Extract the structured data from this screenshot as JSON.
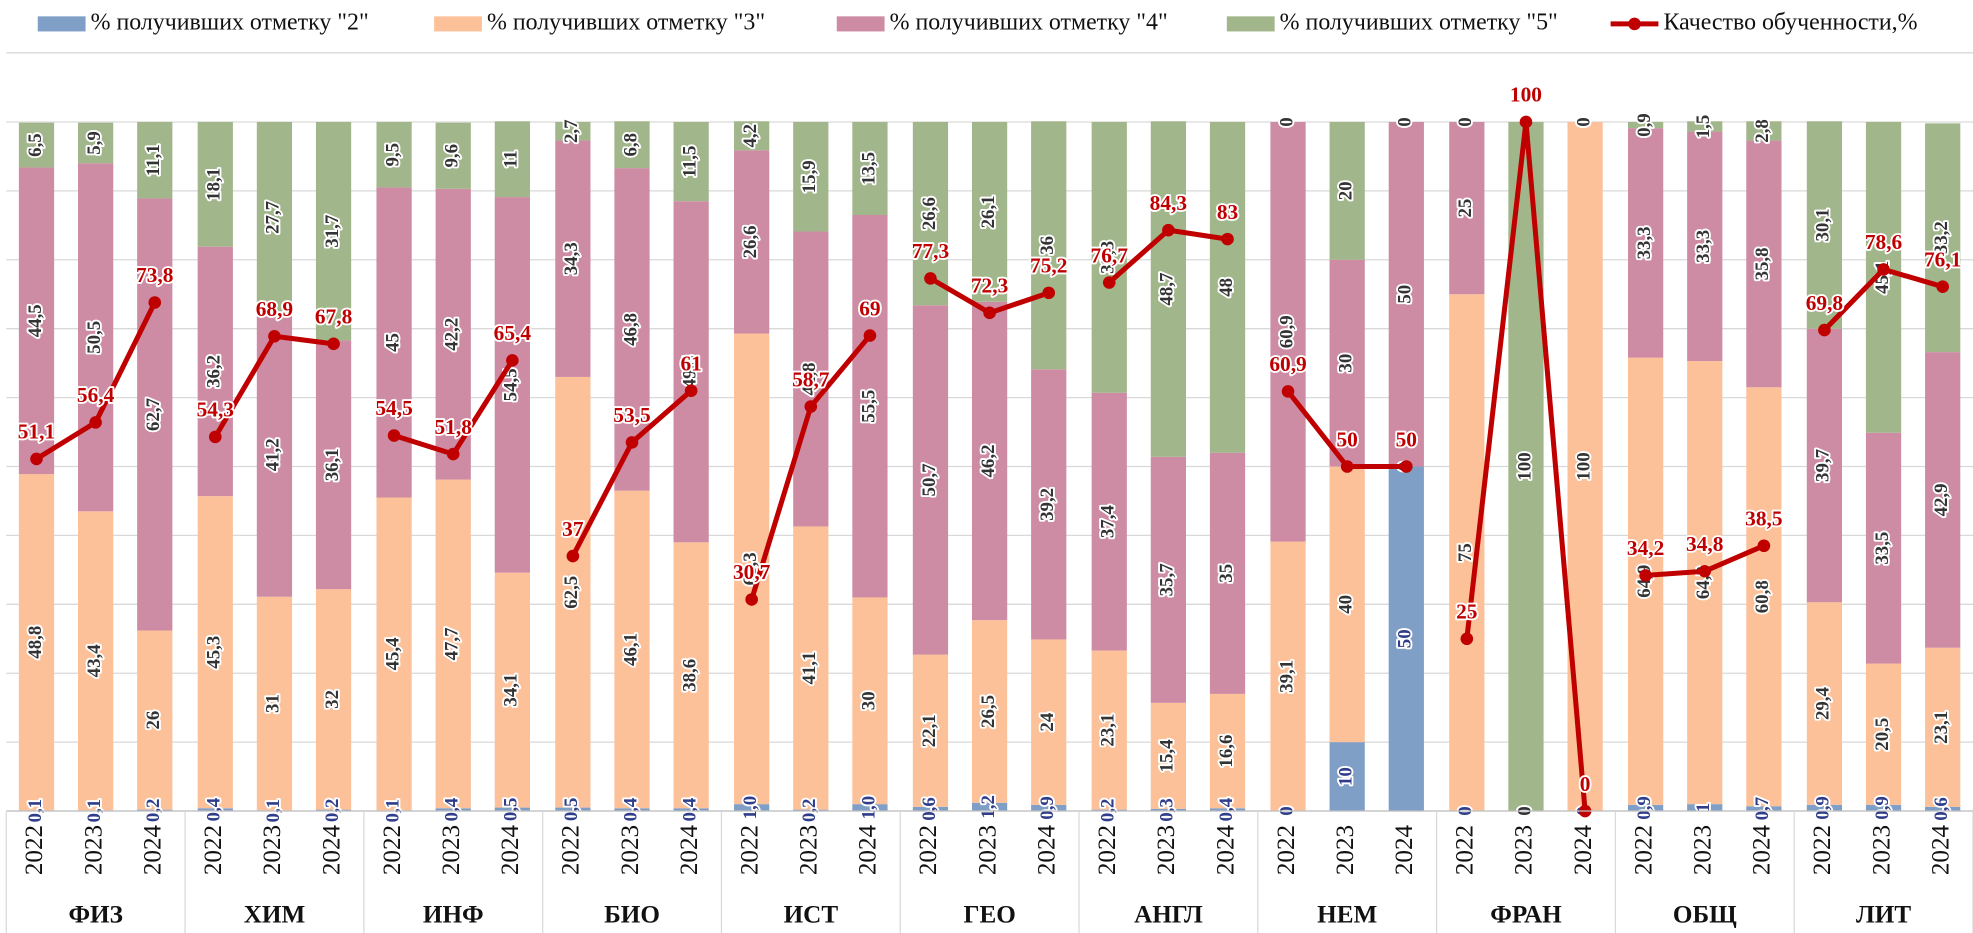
{
  "chart_data": {
    "type": "stacked_bar_line",
    "groups": [
      "ФИЗ",
      "ХИМ",
      "ИНФ",
      "БИО",
      "ИСТ",
      "ГЕО",
      "АНГЛ",
      "НЕМ",
      "ФРАН",
      "ОБЩ",
      "ЛИТ"
    ],
    "categories": [
      "2022",
      "2023",
      "2024",
      "2022",
      "2023",
      "2024",
      "2022",
      "2023",
      "2024",
      "2022",
      "2023",
      "2024",
      "2022",
      "2023",
      "2024",
      "2022",
      "2023",
      "2024",
      "2022",
      "2023",
      "2024",
      "2022",
      "2023",
      "2024",
      "2022",
      "2023",
      "2024",
      "2022",
      "2023",
      "2024",
      "2022",
      "2023",
      "2024"
    ],
    "ylim": [
      0,
      100
    ],
    "gridlines": [
      0,
      10,
      20,
      30,
      40,
      50,
      60,
      70,
      80,
      90,
      100
    ],
    "series": [
      {
        "name": "%  получивших отметку \"2\"",
        "color": "#7f9fc6",
        "label_color": "#2f3d8a",
        "values": [
          0.1,
          0.1,
          0.2,
          0.4,
          0.1,
          0.2,
          0.1,
          0.4,
          0.5,
          0.5,
          0.4,
          0.4,
          1.0,
          0.2,
          1.0,
          0.6,
          1.2,
          0.9,
          0.2,
          0.3,
          0.4,
          0,
          10,
          50,
          0,
          0,
          0,
          0.9,
          1,
          0.7,
          0.9,
          0.9,
          0.6
        ],
        "value_labels": [
          "0,1",
          "0,1",
          "0,2",
          "0,4",
          "0,1",
          "0,2",
          "0,1",
          "0,4",
          "0,5",
          "0,5",
          "0,4",
          "0,4",
          "1,0",
          "0,2",
          "1,0",
          "0,6",
          "1,2",
          "0,9",
          "0,2",
          "0,3",
          "0,4",
          "0",
          "10",
          "50",
          "0",
          "0",
          "0",
          "0,9",
          "1",
          "0,7",
          "0,9",
          "0,9",
          "0,6"
        ]
      },
      {
        "name": "%  получивших отметку \"3\"",
        "color": "#fcc199",
        "label_color": "#333333",
        "values": [
          48.8,
          43.4,
          26,
          45.3,
          31,
          32,
          45.4,
          47.7,
          34.1,
          62.5,
          46.1,
          38.6,
          68.3,
          41.1,
          30,
          22.1,
          26.5,
          24,
          23.1,
          15.4,
          16.6,
          39.1,
          40,
          0,
          75,
          0,
          100,
          64.9,
          64.3,
          60.8,
          29.4,
          20.5,
          23.1
        ],
        "value_labels": [
          "48,8",
          "43,4",
          "26",
          "45,3",
          "31",
          "32",
          "45,4",
          "47,7",
          "34,1",
          "62,5",
          "46,1",
          "38,6",
          "68,3",
          "41,1",
          "30",
          "22,1",
          "26,5",
          "24",
          "23,1",
          "15,4",
          "16,6",
          "39,1",
          "40",
          "0",
          "75",
          "0",
          "100",
          "64,9",
          "64,3",
          "60,8",
          "29,4",
          "20,5",
          "23,1"
        ]
      },
      {
        "name": "% получивших отметку \"4\"",
        "color": "#cd8ba4",
        "label_color": "#333333",
        "values": [
          44.5,
          50.5,
          62.7,
          36.2,
          41.2,
          36.1,
          45,
          42.2,
          54.5,
          34.3,
          46.8,
          49.5,
          26.6,
          42.8,
          55.5,
          50.7,
          46.2,
          39.2,
          37.4,
          35.7,
          35,
          60.9,
          30,
          50,
          25,
          0,
          0,
          33.3,
          33.3,
          35.8,
          39.7,
          33.5,
          42.9
        ],
        "value_labels": [
          "44,5",
          "50,5",
          "62,7",
          "36,2",
          "41,2",
          "36,1",
          "45",
          "42,2",
          "54,5",
          "34,3",
          "46,8",
          "49,5",
          "26,6",
          "42,8",
          "55,5",
          "50,7",
          "46,2",
          "39,2",
          "37,4",
          "35,7",
          "35",
          "60,9",
          "30",
          "50",
          "25",
          "0",
          "0",
          "33,3",
          "33,3",
          "35,8",
          "39,7",
          "33,5",
          "42,9"
        ]
      },
      {
        "name": "% получивших отметку \"5\"",
        "color": "#a2b68b",
        "label_color": "#333333",
        "values": [
          6.5,
          5.9,
          11.1,
          18.1,
          27.7,
          31.7,
          9.5,
          9.6,
          11,
          2.7,
          6.8,
          11.5,
          4.2,
          15.9,
          13.5,
          26.6,
          26.1,
          36,
          39.3,
          48.7,
          48,
          0,
          20,
          0,
          0,
          100,
          0,
          0.9,
          1.5,
          2.8,
          30.1,
          45.1,
          33.2
        ],
        "value_labels": [
          "6,5",
          "5,9",
          "11,1",
          "18,1",
          "27,7",
          "31,7",
          "9,5",
          "9,6",
          "11",
          "2,7",
          "6,8",
          "11,5",
          "4,2",
          "15,9",
          "13,5",
          "26,6",
          "26,1",
          "36",
          "39,3",
          "48,7",
          "48",
          "0",
          "20",
          "0",
          "0",
          "100",
          "0",
          "0,9",
          "1,5",
          "2,8",
          "30,1",
          "45,1",
          "33,2"
        ]
      },
      {
        "name": "Качество обученности,%",
        "color": "#c00000",
        "type": "line",
        "values": [
          51.1,
          56.4,
          73.8,
          54.3,
          68.9,
          67.8,
          54.5,
          51.8,
          65.4,
          37,
          53.5,
          61,
          30.7,
          58.7,
          69,
          77.3,
          72.3,
          75.2,
          76.7,
          84.3,
          83,
          60.9,
          50,
          50,
          25,
          100,
          0,
          34.2,
          34.8,
          38.5,
          69.8,
          78.6,
          76.1
        ],
        "value_labels": [
          "51,1",
          "56,4",
          "73,8",
          "54,3",
          "68,9",
          "67,8",
          "54,5",
          "51,8",
          "65,4",
          "37",
          "53,5",
          "61",
          "30,7",
          "58,7",
          "69",
          "77,3",
          "72,3",
          "75,2",
          "76,7",
          "84,3",
          "83",
          "60,9",
          "50",
          "50",
          "25",
          "100",
          "0",
          "34,2",
          "34,8",
          "38,5",
          "69,8",
          "78,6",
          "76,1"
        ]
      }
    ]
  }
}
